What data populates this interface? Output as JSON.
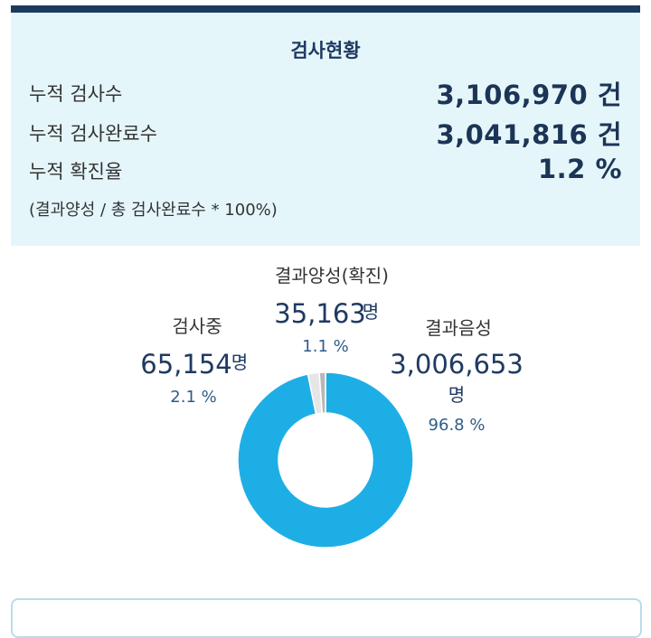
{
  "summary": {
    "title": "검사현황",
    "rows": [
      {
        "label": "누적 검사수",
        "value": "3,106,970 건"
      },
      {
        "label": "누적 검사완료수",
        "value": "3,041,816 건"
      },
      {
        "label": "누적 확진율",
        "value": "1.2 %"
      }
    ],
    "formula": "(결과양성 / 총 검사완료수 * 100%)"
  },
  "colors": {
    "negative": "#1eaee6",
    "positive": "#b8b8b8",
    "testing": "#e6e6e6"
  },
  "chart_data": {
    "type": "pie",
    "title": "",
    "slices": [
      {
        "name": "결과음성",
        "value": 3006653,
        "count_label": "3,006,653",
        "unit": "명",
        "percent": 96.8,
        "percent_label": "96.8 %"
      },
      {
        "name": "검사중",
        "value": 65154,
        "count_label": "65,154",
        "unit": "명",
        "percent": 2.1,
        "percent_label": "2.1 %"
      },
      {
        "name": "결과양성(확진)",
        "value": 35163,
        "count_label": "35,163",
        "unit": "명",
        "percent": 1.1,
        "percent_label": "1.1 %"
      }
    ]
  }
}
